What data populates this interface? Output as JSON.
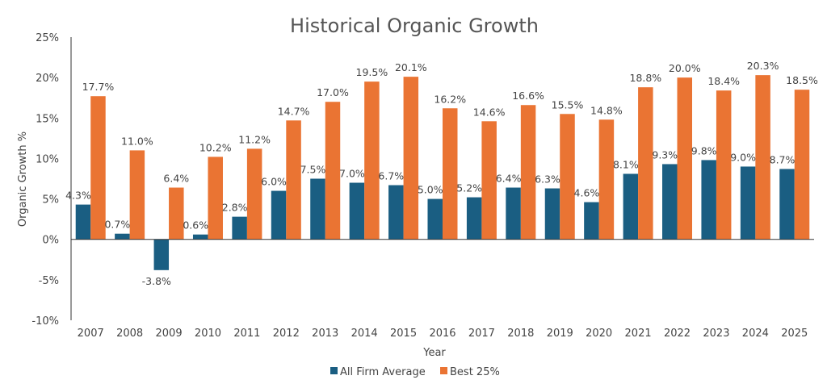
{
  "chart_data": {
    "type": "bar",
    "title": "Historical Organic Growth",
    "xlabel": "Year",
    "ylabel": "Organic Growth %",
    "ylim": [
      -10,
      25
    ],
    "yticks": [
      "-10%",
      "-5%",
      "0%",
      "5%",
      "10%",
      "15%",
      "20%",
      "25%"
    ],
    "grid": false,
    "legend_position": "bottom",
    "categories": [
      "2007",
      "2008",
      "2009",
      "2010",
      "2011",
      "2012",
      "2013",
      "2014",
      "2015",
      "2016",
      "2017",
      "2018",
      "2019",
      "2020",
      "2021",
      "2022",
      "2023",
      "2024",
      "2025"
    ],
    "series": [
      {
        "name": "All Firm Average",
        "color": "#1a5e82",
        "values": [
          4.3,
          0.7,
          -3.8,
          0.6,
          2.8,
          6.0,
          7.5,
          7.0,
          6.7,
          5.0,
          5.2,
          6.4,
          6.3,
          4.6,
          8.1,
          9.3,
          9.8,
          9.0,
          8.7
        ],
        "labels": [
          "4.3%",
          "0.7%",
          "-3.8%",
          "0.6%",
          "2.8%",
          "6.0%",
          "7.5%",
          "7.0%",
          "6.7%",
          "5.0%",
          "5.2%",
          "6.4%",
          "6.3%",
          "4.6%",
          "8.1%",
          "9.3%",
          "9.8%",
          "9.0%",
          "8.7%"
        ]
      },
      {
        "name": "Best 25%",
        "color": "#ea7433",
        "values": [
          17.7,
          11.0,
          6.4,
          10.2,
          11.2,
          14.7,
          17.0,
          19.5,
          20.1,
          16.2,
          14.6,
          16.6,
          15.5,
          14.8,
          18.8,
          20.0,
          18.4,
          20.3,
          18.5
        ],
        "labels": [
          "17.7%",
          "11.0%",
          "6.4%",
          "10.2%",
          "11.2%",
          "14.7%",
          "17.0%",
          "19.5%",
          "20.1%",
          "16.2%",
          "14.6%",
          "16.6%",
          "15.5%",
          "14.8%",
          "18.8%",
          "20.0%",
          "18.4%",
          "20.3%",
          "18.5%"
        ]
      }
    ]
  }
}
